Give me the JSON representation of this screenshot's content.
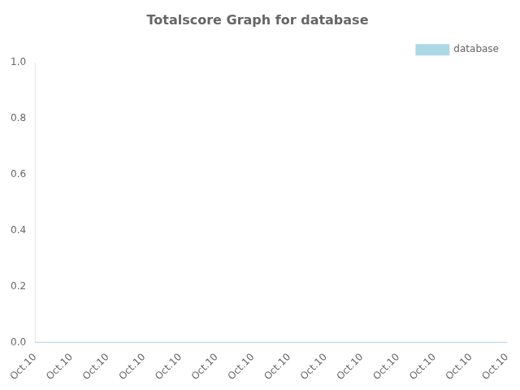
{
  "chart_data": {
    "type": "line",
    "title": "Totalscore Graph for database",
    "categories": [
      "Oct.10",
      "Oct.10",
      "Oct.10",
      "Oct.10",
      "Oct.10",
      "Oct.10",
      "Oct.10",
      "Oct.10",
      "Oct.10",
      "Oct.10",
      "Oct.10",
      "Oct.10",
      "Oct.10",
      "Oct.10"
    ],
    "series": [
      {
        "name": "database",
        "color": "#add8e6",
        "values": [
          0.0,
          0.0,
          0.0,
          0.0,
          0.0,
          0.0,
          0.0,
          0.0,
          0.0,
          0.0,
          0.0,
          0.0,
          0.0,
          0.0
        ]
      }
    ],
    "ylim": [
      0.0,
      1.0
    ],
    "yticks": [
      {
        "value": 0.0,
        "label": "0.0"
      },
      0.2,
      0.4,
      0.6,
      0.8,
      {
        "value": 1.0,
        "label": "1.0"
      }
    ],
    "grid": false,
    "legend": "upper right"
  }
}
